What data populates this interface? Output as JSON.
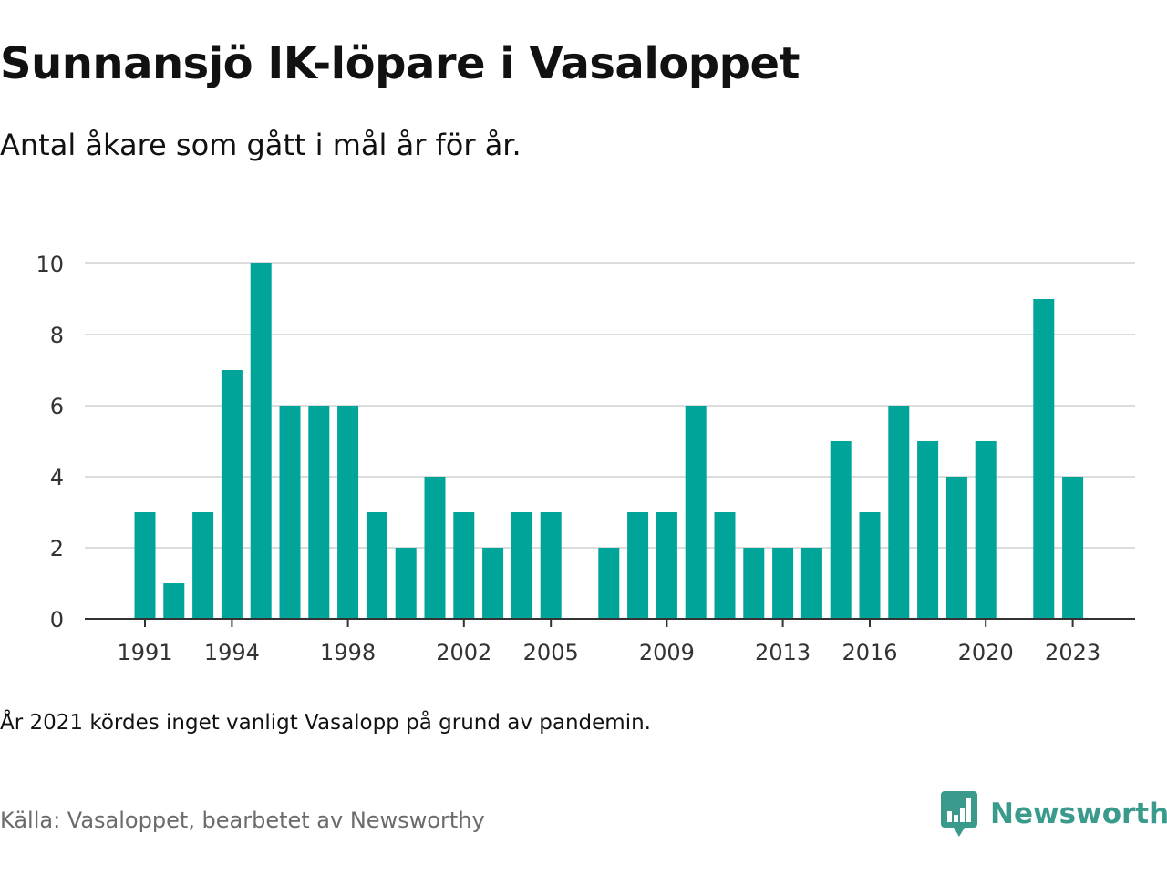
{
  "title": "Sunnansjö IK-löpare i Vasaloppet",
  "subtitle": "Antal åkare som gått i mål år för år.",
  "note": "År 2021 kördes inget vanligt Vasalopp på grund av pandemin.",
  "source": "Källa: Vasaloppet, bearbetet av Newsworthy",
  "brand": {
    "name": "Newsworthy",
    "icon": "newsworthy-logo-icon",
    "color": "#3a9a8c"
  },
  "chart_data": {
    "type": "bar",
    "bar_color": "#00a499",
    "x": [
      1991,
      1992,
      1993,
      1994,
      1995,
      1996,
      1997,
      1998,
      1999,
      2000,
      2001,
      2002,
      2003,
      2004,
      2005,
      2006,
      2007,
      2008,
      2009,
      2010,
      2011,
      2012,
      2013,
      2014,
      2015,
      2016,
      2017,
      2018,
      2019,
      2020,
      2021,
      2022,
      2023
    ],
    "values": [
      3,
      1,
      3,
      7,
      10,
      6,
      6,
      6,
      3,
      2,
      4,
      3,
      2,
      3,
      3,
      null,
      2,
      3,
      3,
      6,
      3,
      2,
      2,
      2,
      5,
      3,
      6,
      5,
      4,
      5,
      null,
      9,
      4
    ],
    "x_tick_labels": [
      "1991",
      "1994",
      "1998",
      "2002",
      "2005",
      "2009",
      "2013",
      "2016",
      "2020",
      "2023"
    ],
    "y_ticks": [
      0,
      2,
      4,
      6,
      8,
      10
    ],
    "ylim": [
      0,
      10
    ],
    "grid": true
  }
}
